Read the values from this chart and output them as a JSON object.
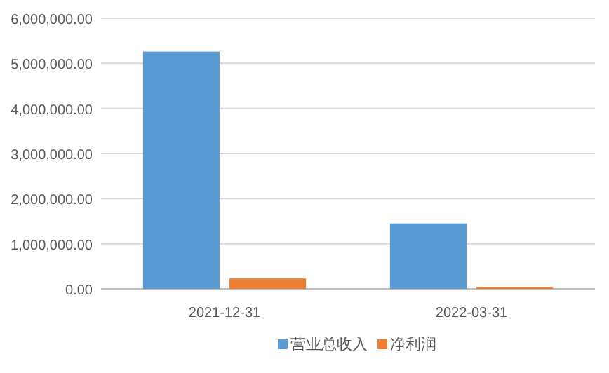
{
  "chart_data": {
    "type": "bar",
    "categories": [
      "2021-12-31",
      "2022-03-31"
    ],
    "series": [
      {
        "name": "营业总收入",
        "color": "#5b9bd5",
        "values": [
          5260000,
          1450000
        ]
      },
      {
        "name": "净利润",
        "color": "#ed7d31",
        "values": [
          230000,
          40000
        ]
      }
    ],
    "ylim": [
      0,
      6000000
    ],
    "yticks": [
      {
        "value": 0,
        "label": "0.00"
      },
      {
        "value": 1000000,
        "label": "1,000,000.00"
      },
      {
        "value": 2000000,
        "label": "2,000,000.00"
      },
      {
        "value": 3000000,
        "label": "3,000,000.00"
      },
      {
        "value": 4000000,
        "label": "4,000,000.00"
      },
      {
        "value": 5000000,
        "label": "5,000,000.00"
      },
      {
        "value": 6000000,
        "label": "6,000,000.00"
      }
    ],
    "grid": "y",
    "legend": "bottom"
  }
}
